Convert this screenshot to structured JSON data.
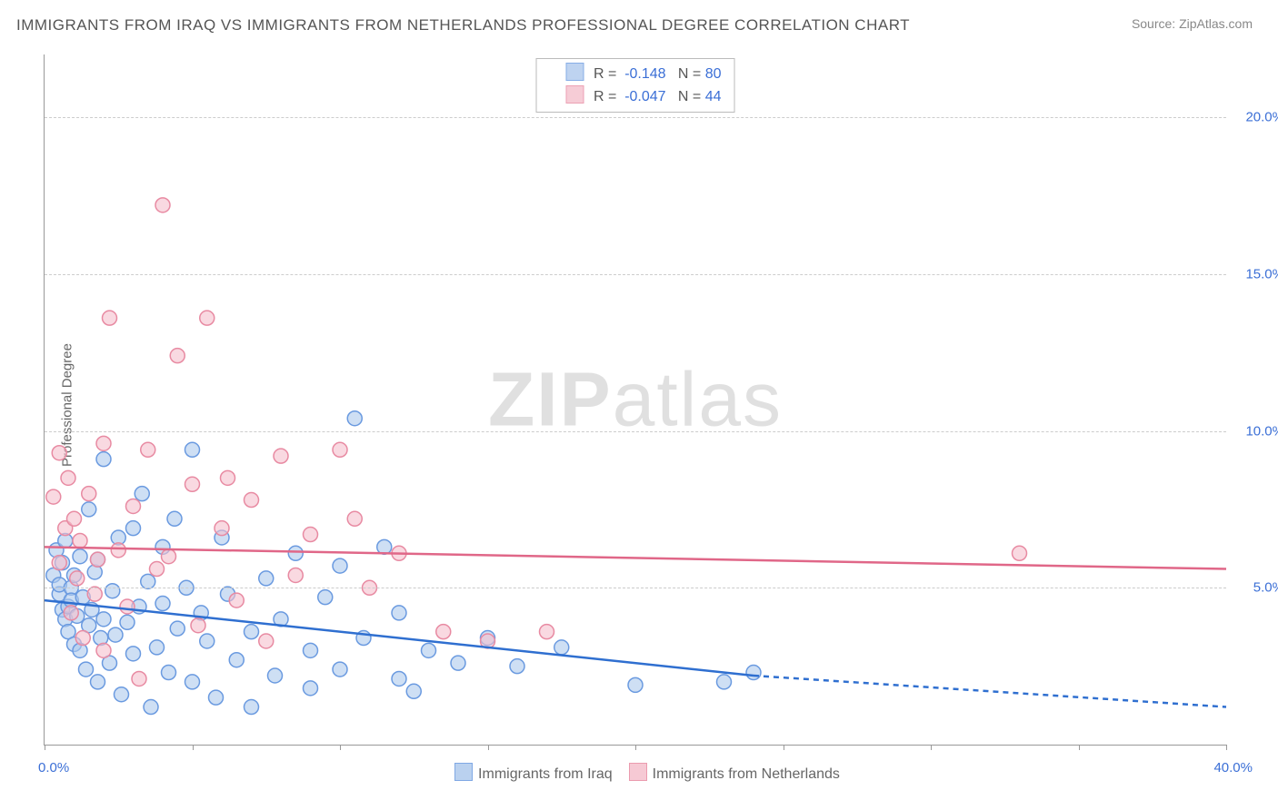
{
  "title": "IMMIGRANTS FROM IRAQ VS IMMIGRANTS FROM NETHERLANDS PROFESSIONAL DEGREE CORRELATION CHART",
  "source_prefix": "Source: ",
  "source_name": "ZipAtlas.com",
  "ylabel": "Professional Degree",
  "watermark_a": "ZIP",
  "watermark_b": "atlas",
  "chart": {
    "type": "scatter",
    "xlim": [
      0,
      40
    ],
    "ylim": [
      0,
      22
    ],
    "ytick_values": [
      5,
      10,
      15,
      20
    ],
    "ytick_labels": [
      "5.0%",
      "10.0%",
      "15.0%",
      "20.0%"
    ],
    "xtick_values": [
      0,
      5,
      10,
      15,
      20,
      25,
      30,
      35,
      40
    ],
    "x_origin_label": "0.0%",
    "x_end_label": "40.0%",
    "grid_color": "#cccccc",
    "axis_color": "#999999",
    "label_color": "#3b6fd6",
    "marker_radius": 8,
    "marker_stroke_width": 1.5,
    "line_width": 2.5,
    "series": [
      {
        "id": "iraq",
        "name": "Immigrants from Iraq",
        "R": "-0.148",
        "N": "80",
        "fill": "#aec9ed",
        "stroke": "#6a9ae0",
        "fill_opacity": 0.6,
        "line_color": "#2f6fd0",
        "trend": {
          "x1": 0,
          "y1": 4.6,
          "x2": 24,
          "y2": 2.2,
          "x2_dash": 40,
          "y2_dash": 1.2
        },
        "points": [
          [
            0.3,
            5.4
          ],
          [
            0.4,
            6.2
          ],
          [
            0.5,
            4.8
          ],
          [
            0.5,
            5.1
          ],
          [
            0.6,
            4.3
          ],
          [
            0.6,
            5.8
          ],
          [
            0.7,
            4.0
          ],
          [
            0.7,
            6.5
          ],
          [
            0.8,
            3.6
          ],
          [
            0.8,
            4.4
          ],
          [
            0.9,
            5.0
          ],
          [
            0.9,
            4.6
          ],
          [
            1.0,
            3.2
          ],
          [
            1.0,
            5.4
          ],
          [
            1.1,
            4.1
          ],
          [
            1.2,
            6.0
          ],
          [
            1.2,
            3.0
          ],
          [
            1.3,
            4.7
          ],
          [
            1.4,
            2.4
          ],
          [
            1.5,
            7.5
          ],
          [
            1.5,
            3.8
          ],
          [
            1.6,
            4.3
          ],
          [
            1.7,
            5.5
          ],
          [
            1.8,
            2.0
          ],
          [
            1.8,
            5.9
          ],
          [
            1.9,
            3.4
          ],
          [
            2.0,
            4.0
          ],
          [
            2.0,
            9.1
          ],
          [
            2.2,
            2.6
          ],
          [
            2.3,
            4.9
          ],
          [
            2.4,
            3.5
          ],
          [
            2.5,
            6.6
          ],
          [
            2.6,
            1.6
          ],
          [
            2.8,
            3.9
          ],
          [
            3.0,
            6.9
          ],
          [
            3.0,
            2.9
          ],
          [
            3.2,
            4.4
          ],
          [
            3.3,
            8.0
          ],
          [
            3.5,
            5.2
          ],
          [
            3.6,
            1.2
          ],
          [
            3.8,
            3.1
          ],
          [
            4.0,
            4.5
          ],
          [
            4.0,
            6.3
          ],
          [
            4.2,
            2.3
          ],
          [
            4.4,
            7.2
          ],
          [
            4.5,
            3.7
          ],
          [
            4.8,
            5.0
          ],
          [
            5.0,
            9.4
          ],
          [
            5.0,
            2.0
          ],
          [
            5.3,
            4.2
          ],
          [
            5.5,
            3.3
          ],
          [
            5.8,
            1.5
          ],
          [
            6.0,
            6.6
          ],
          [
            6.2,
            4.8
          ],
          [
            6.5,
            2.7
          ],
          [
            7.0,
            3.6
          ],
          [
            7.0,
            1.2
          ],
          [
            7.5,
            5.3
          ],
          [
            7.8,
            2.2
          ],
          [
            8.0,
            4.0
          ],
          [
            8.5,
            6.1
          ],
          [
            9.0,
            3.0
          ],
          [
            9.0,
            1.8
          ],
          [
            9.5,
            4.7
          ],
          [
            10.0,
            5.7
          ],
          [
            10.0,
            2.4
          ],
          [
            10.5,
            10.4
          ],
          [
            10.8,
            3.4
          ],
          [
            11.5,
            6.3
          ],
          [
            12.0,
            2.1
          ],
          [
            12.0,
            4.2
          ],
          [
            12.5,
            1.7
          ],
          [
            13.0,
            3.0
          ],
          [
            14.0,
            2.6
          ],
          [
            15.0,
            3.4
          ],
          [
            16.0,
            2.5
          ],
          [
            17.5,
            3.1
          ],
          [
            20.0,
            1.9
          ],
          [
            23.0,
            2.0
          ],
          [
            24.0,
            2.3
          ]
        ]
      },
      {
        "id": "netherlands",
        "name": "Immigrants from Netherlands",
        "R": "-0.047",
        "N": "44",
        "fill": "#f5c0cd",
        "stroke": "#e88aa2",
        "fill_opacity": 0.6,
        "line_color": "#e06788",
        "trend": {
          "x1": 0,
          "y1": 6.3,
          "x2": 40,
          "y2": 5.6,
          "x2_dash": 40,
          "y2_dash": 5.6
        },
        "points": [
          [
            0.3,
            7.9
          ],
          [
            0.5,
            9.3
          ],
          [
            0.5,
            5.8
          ],
          [
            0.7,
            6.9
          ],
          [
            0.8,
            8.5
          ],
          [
            0.9,
            4.2
          ],
          [
            1.0,
            7.2
          ],
          [
            1.1,
            5.3
          ],
          [
            1.2,
            6.5
          ],
          [
            1.3,
            3.4
          ],
          [
            1.5,
            8.0
          ],
          [
            1.7,
            4.8
          ],
          [
            1.8,
            5.9
          ],
          [
            2.0,
            9.6
          ],
          [
            2.0,
            3.0
          ],
          [
            2.2,
            13.6
          ],
          [
            2.5,
            6.2
          ],
          [
            2.8,
            4.4
          ],
          [
            3.0,
            7.6
          ],
          [
            3.2,
            2.1
          ],
          [
            3.5,
            9.4
          ],
          [
            3.8,
            5.6
          ],
          [
            4.0,
            17.2
          ],
          [
            4.2,
            6.0
          ],
          [
            4.5,
            12.4
          ],
          [
            5.0,
            8.3
          ],
          [
            5.2,
            3.8
          ],
          [
            5.5,
            13.6
          ],
          [
            6.0,
            6.9
          ],
          [
            6.2,
            8.5
          ],
          [
            6.5,
            4.6
          ],
          [
            7.0,
            7.8
          ],
          [
            7.5,
            3.3
          ],
          [
            8.0,
            9.2
          ],
          [
            8.5,
            5.4
          ],
          [
            9.0,
            6.7
          ],
          [
            10.0,
            9.4
          ],
          [
            10.5,
            7.2
          ],
          [
            11.0,
            5.0
          ],
          [
            12.0,
            6.1
          ],
          [
            13.5,
            3.6
          ],
          [
            15.0,
            3.3
          ],
          [
            17.0,
            3.6
          ],
          [
            33.0,
            6.1
          ]
        ]
      }
    ]
  },
  "legend": {
    "bottom_items": [
      "Immigrants from Iraq",
      "Immigrants from Netherlands"
    ]
  }
}
